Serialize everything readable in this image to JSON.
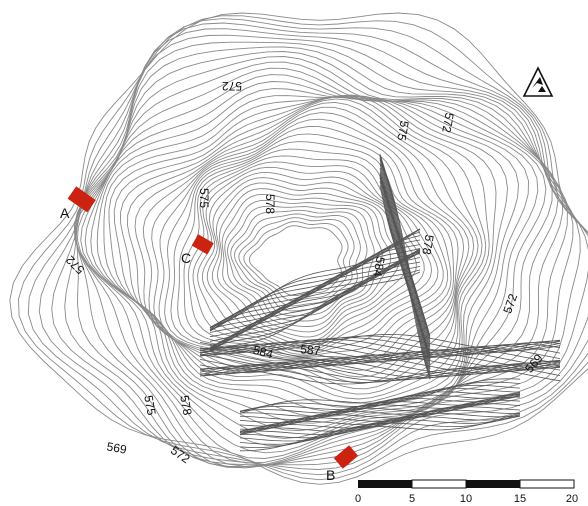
{
  "contour_labels": [
    "572",
    "575",
    "578",
    "572",
    "575",
    "578",
    "572",
    "584",
    "578",
    "572",
    "569",
    "584",
    "587",
    "575",
    "578",
    "569",
    "572"
  ],
  "sites": [
    {
      "label": "A",
      "color": "#cc2211"
    },
    {
      "label": "B",
      "color": "#cc2211"
    },
    {
      "label": "C",
      "color": "#cc2211"
    }
  ],
  "scale_bar": {
    "ticks": [
      "0",
      "5",
      "10",
      "15",
      "20"
    ]
  },
  "north_arrow": {
    "icon": "north-arrow-icon"
  }
}
